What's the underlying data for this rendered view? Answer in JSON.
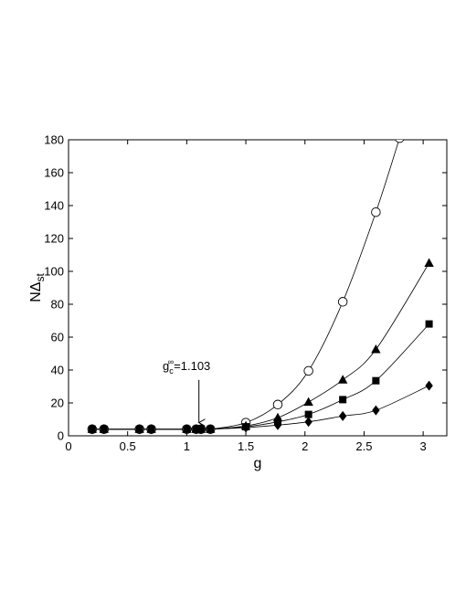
{
  "chart_data": {
    "type": "line",
    "title": "",
    "xlabel": "g",
    "ylabel_main": "NΔ",
    "ylabel_sub": "st",
    "xlim": [
      0,
      3.2
    ],
    "ylim": [
      0,
      180
    ],
    "xticks": [
      0,
      0.5,
      1,
      1.5,
      2,
      2.5,
      3
    ],
    "xtick_labels": [
      "0",
      "0.5",
      "1",
      "1.5",
      "2",
      "2.5",
      "3"
    ],
    "yticks": [
      0,
      20,
      40,
      60,
      80,
      100,
      120,
      140,
      160,
      180
    ],
    "ytick_labels": [
      "0",
      "20",
      "40",
      "60",
      "80",
      "100",
      "120",
      "140",
      "160",
      "180"
    ],
    "grid": false,
    "legend": "none",
    "series": [
      {
        "marker": "circle-open",
        "x": [
          0.2,
          0.3,
          0.6,
          0.7,
          1.0,
          1.08,
          1.12,
          1.2,
          1.5,
          1.77,
          2.03,
          2.32,
          2.6,
          2.8
        ],
        "y": [
          4,
          4,
          4,
          4,
          4,
          4,
          4,
          4,
          8,
          19,
          39.5,
          81.5,
          136,
          181
        ]
      },
      {
        "marker": "triangle",
        "x": [
          0.2,
          0.3,
          0.6,
          0.7,
          1.0,
          1.08,
          1.12,
          1.2,
          1.5,
          1.77,
          2.03,
          2.32,
          2.6,
          3.05
        ],
        "y": [
          4,
          4,
          4,
          4,
          4,
          4,
          4,
          4,
          6,
          11,
          20.5,
          34,
          52.5,
          105
        ]
      },
      {
        "marker": "square",
        "x": [
          0.2,
          0.3,
          0.6,
          0.7,
          1.0,
          1.08,
          1.12,
          1.2,
          1.5,
          1.77,
          2.03,
          2.32,
          2.6,
          3.05
        ],
        "y": [
          4,
          4,
          4,
          4,
          4,
          4,
          4,
          4,
          5.5,
          8.5,
          13,
          22,
          33.5,
          68
        ]
      },
      {
        "marker": "diamond",
        "x": [
          0.2,
          0.3,
          0.6,
          0.7,
          1.0,
          1.08,
          1.12,
          1.2,
          1.5,
          1.77,
          2.03,
          2.32,
          2.6,
          3.05
        ],
        "y": [
          4,
          4,
          4,
          4,
          4,
          4,
          4,
          4,
          5,
          6.5,
          8.5,
          12,
          15.5,
          30.5
        ]
      }
    ],
    "annotation": {
      "main": "g",
      "sub": "c",
      "sup": "∞",
      "value": "=1.103",
      "arrow_x": 1.103,
      "arrow_from_y": 34,
      "arrow_to_y": 8
    }
  }
}
